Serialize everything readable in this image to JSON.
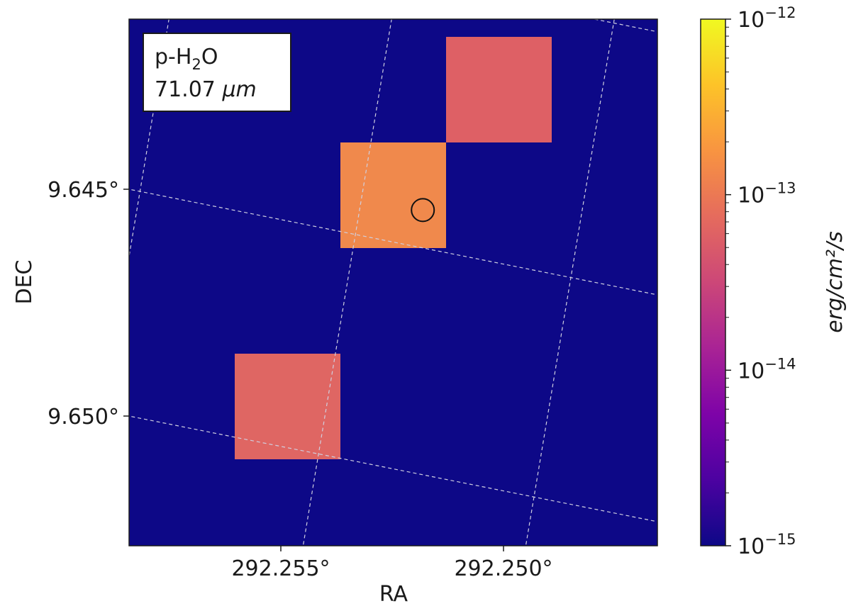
{
  "chart_data": {
    "type": "heatmap",
    "projection": "sky map, rotated RA/DEC grid",
    "x_axis": {
      "label": "RA",
      "ticks": [
        {
          "value": 292.255,
          "label": "292.255°"
        },
        {
          "value": 292.25,
          "label": "292.250°"
        }
      ]
    },
    "y_axis": {
      "label": "DEC",
      "ticks": [
        {
          "value": 9.645,
          "label": "9.645°"
        },
        {
          "value": 9.65,
          "label": "9.650°"
        }
      ]
    },
    "grid": true,
    "annotation": {
      "species_prefix": "p-H",
      "species_subscript": "2",
      "species_suffix": "O",
      "wavelength_value": "71.07",
      "wavelength_unit": "μm"
    },
    "background_value": 1e-15,
    "background_color": "#0d0887",
    "pixels": [
      {
        "row": 0,
        "col": 3,
        "value": 9e-14,
        "color": "#de6065"
      },
      {
        "row": 1,
        "col": 2,
        "value": 2e-13,
        "color": "#f0894c"
      },
      {
        "row": 3,
        "col": 1,
        "value": 9e-14,
        "color": "#df6663"
      }
    ],
    "marker": {
      "shape": "circle",
      "description": "source position",
      "col": 2.78,
      "row": 1.64
    },
    "colorbar": {
      "scale": "log",
      "range": [
        1e-15,
        1e-12
      ],
      "label": "erg/cm²/s",
      "colormap": "plasma",
      "ticks": [
        {
          "value": 1e-15,
          "base": "10",
          "exponent": "−15"
        },
        {
          "value": 1e-14,
          "base": "10",
          "exponent": "−14"
        },
        {
          "value": 1e-13,
          "base": "10",
          "exponent": "−13"
        },
        {
          "value": 1e-12,
          "base": "10",
          "exponent": "−12"
        }
      ]
    }
  },
  "colors": {
    "grid_line": "#d0d0e0",
    "frame": "#1a1a1a"
  }
}
